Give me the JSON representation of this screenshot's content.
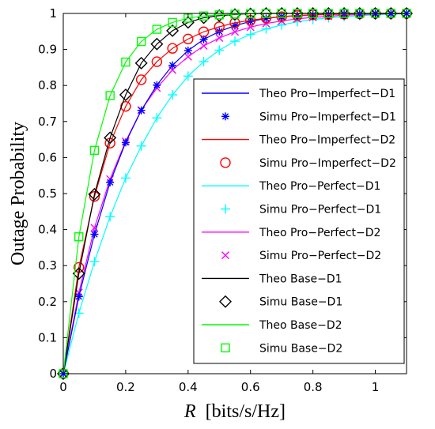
{
  "chart_data": {
    "type": "line",
    "xlabel_italic": "R",
    "xlabel_rest": "[bits/s/Hz]",
    "ylabel": "Outage Probability",
    "xlim": [
      0,
      1.1
    ],
    "ylim": [
      0,
      1
    ],
    "x_ticks": [
      "0",
      "0.2",
      "0.4",
      "0.6",
      "0.8",
      "1"
    ],
    "y_ticks": [
      "0",
      "0.1",
      "0.2",
      "0.3",
      "0.4",
      "0.5",
      "0.6",
      "0.7",
      "0.8",
      "0.9",
      "1"
    ],
    "grid": false,
    "legend_position": "right",
    "x_marker": [
      0,
      0.05,
      0.1,
      0.15,
      0.2,
      0.25,
      0.3,
      0.35,
      0.4,
      0.45,
      0.5,
      0.55,
      0.6,
      0.65,
      0.7,
      0.75,
      0.8,
      0.85,
      0.9,
      0.95,
      1.0,
      1.05,
      1.1
    ],
    "series": [
      {
        "name": "Theo Pro−Imperfect−D1",
        "kind": "line",
        "color": "#0000ff",
        "marker": "none",
        "values": [
          0,
          0.214,
          0.387,
          0.531,
          0.642,
          0.731,
          0.801,
          0.856,
          0.897,
          0.928,
          0.95,
          0.966,
          0.978,
          0.986,
          0.991,
          0.994,
          0.996,
          0.998,
          0.999,
          0.999,
          1.0,
          1.0,
          1.0
        ]
      },
      {
        "name": "Simu Pro−Imperfect−D1",
        "kind": "marker",
        "color": "#0000ff",
        "marker": "asterisk",
        "values": [
          0,
          0.214,
          0.387,
          0.531,
          0.642,
          0.731,
          0.801,
          0.856,
          0.897,
          0.928,
          0.95,
          0.966,
          0.978,
          0.986,
          0.991,
          0.994,
          0.996,
          0.998,
          0.999,
          0.999,
          1.0,
          1.0,
          1.0
        ]
      },
      {
        "name": "Theo Pro−Imperfect−D2",
        "kind": "line",
        "color": "#ff0000",
        "marker": "none",
        "values": [
          0,
          0.295,
          0.492,
          0.64,
          0.742,
          0.816,
          0.866,
          0.903,
          0.929,
          0.949,
          0.963,
          0.974,
          0.981,
          0.987,
          0.991,
          0.994,
          0.996,
          0.997,
          0.998,
          0.999,
          1.0,
          1.0,
          1.0
        ]
      },
      {
        "name": "Simu Pro−Imperfect−D2",
        "kind": "marker",
        "color": "#ff0000",
        "marker": "circle",
        "values": [
          0,
          0.295,
          0.492,
          0.64,
          0.742,
          0.816,
          0.866,
          0.903,
          0.929,
          0.949,
          0.963,
          0.974,
          0.981,
          0.987,
          0.991,
          0.994,
          0.996,
          0.997,
          0.998,
          0.999,
          1.0,
          1.0,
          1.0
        ]
      },
      {
        "name": "Theo Pro−Perfect−D1",
        "kind": "line",
        "color": "#00ffff",
        "marker": "none",
        "values": [
          0,
          0.168,
          0.311,
          0.436,
          0.543,
          0.632,
          0.71,
          0.774,
          0.826,
          0.866,
          0.898,
          0.923,
          0.942,
          0.957,
          0.968,
          0.977,
          0.983,
          0.988,
          0.991,
          0.994,
          0.996,
          0.998,
          0.999
        ]
      },
      {
        "name": "Simu Pro−Perfect−D1",
        "kind": "marker",
        "color": "#00ffff",
        "marker": "plus",
        "values": [
          0,
          0.168,
          0.311,
          0.436,
          0.543,
          0.632,
          0.71,
          0.774,
          0.826,
          0.866,
          0.898,
          0.923,
          0.942,
          0.957,
          0.968,
          0.977,
          0.983,
          0.988,
          0.991,
          0.994,
          0.996,
          0.998,
          0.999
        ]
      },
      {
        "name": "Theo Pro−Perfect−D2",
        "kind": "line",
        "color": "#ff00ff",
        "marker": "none",
        "values": [
          0,
          0.225,
          0.405,
          0.54,
          0.645,
          0.732,
          0.793,
          0.843,
          0.88,
          0.91,
          0.932,
          0.949,
          0.962,
          0.972,
          0.979,
          0.985,
          0.989,
          0.992,
          0.995,
          0.997,
          0.998,
          0.999,
          1.0
        ]
      },
      {
        "name": "Simu Pro−Perfect−D2",
        "kind": "marker",
        "color": "#ff00ff",
        "marker": "x",
        "values": [
          0,
          0.225,
          0.405,
          0.54,
          0.645,
          0.732,
          0.793,
          0.843,
          0.88,
          0.91,
          0.932,
          0.949,
          0.962,
          0.972,
          0.979,
          0.985,
          0.989,
          0.992,
          0.995,
          0.997,
          0.998,
          0.999,
          1.0
        ]
      },
      {
        "name": "Theo Base−D1",
        "kind": "line",
        "color": "#000000",
        "marker": "none",
        "values": [
          0,
          0.278,
          0.498,
          0.655,
          0.774,
          0.862,
          0.915,
          0.952,
          0.975,
          0.988,
          0.994,
          0.997,
          0.999,
          1.0,
          1.0,
          1.0,
          1.0,
          1.0,
          1.0,
          1.0,
          1.0,
          1.0,
          1.0
        ]
      },
      {
        "name": "Simu Base−D1",
        "kind": "marker",
        "color": "#000000",
        "marker": "diamond",
        "values": [
          0,
          0.278,
          0.498,
          0.655,
          0.774,
          0.862,
          0.915,
          0.952,
          0.975,
          0.988,
          0.994,
          0.997,
          0.999,
          1.0,
          1.0,
          1.0,
          1.0,
          1.0,
          1.0,
          1.0,
          1.0,
          1.0,
          1.0
        ]
      },
      {
        "name": "Theo Base−D2",
        "kind": "line",
        "color": "#00ff00",
        "marker": "none",
        "values": [
          0,
          0.38,
          0.62,
          0.772,
          0.865,
          0.922,
          0.956,
          0.975,
          0.987,
          0.993,
          0.996,
          0.998,
          0.999,
          1.0,
          1.0,
          1.0,
          1.0,
          1.0,
          1.0,
          1.0,
          1.0,
          1.0,
          1.0
        ]
      },
      {
        "name": "Simu Base−D2",
        "kind": "marker",
        "color": "#00ff00",
        "marker": "square",
        "values": [
          0,
          0.38,
          0.62,
          0.772,
          0.865,
          0.922,
          0.956,
          0.975,
          0.987,
          0.993,
          0.996,
          0.998,
          0.999,
          1.0,
          1.0,
          1.0,
          1.0,
          1.0,
          1.0,
          1.0,
          1.0,
          1.0,
          1.0
        ]
      }
    ]
  }
}
